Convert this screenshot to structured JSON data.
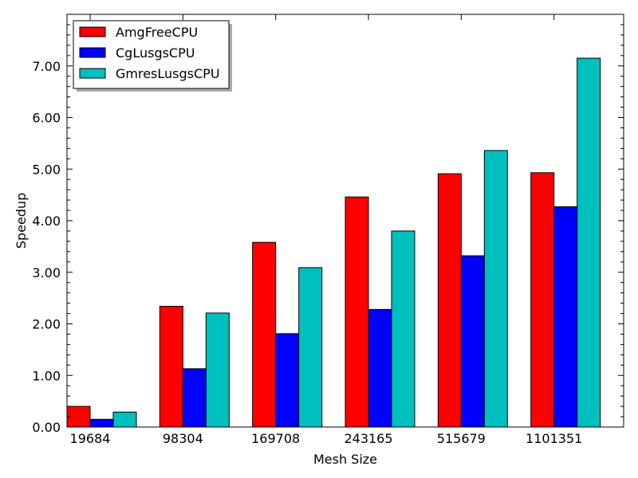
{
  "chart_data": {
    "type": "bar",
    "xlabel": "Mesh Size",
    "ylabel": "Speedup",
    "categories": [
      "19684",
      "98304",
      "169708",
      "243165",
      "515679",
      "1101351"
    ],
    "series": [
      {
        "name": "AmgFreeCPU",
        "color": "#ff0000",
        "values": [
          0.4,
          2.34,
          3.58,
          4.46,
          4.91,
          4.93
        ]
      },
      {
        "name": "CgLusgsCPU",
        "color": "#0000ff",
        "values": [
          0.15,
          1.13,
          1.81,
          2.28,
          3.32,
          4.27
        ]
      },
      {
        "name": "GmresLusgsCPU",
        "color": "#00bfbf",
        "values": [
          0.29,
          2.21,
          3.09,
          3.8,
          5.36,
          7.15
        ]
      }
    ],
    "ylim": [
      0,
      8.0
    ],
    "yticks": [
      "0.00",
      "1.00",
      "2.00",
      "3.00",
      "4.00",
      "5.00",
      "6.00",
      "7.00"
    ],
    "legend_position": "top-left",
    "grid": false
  }
}
